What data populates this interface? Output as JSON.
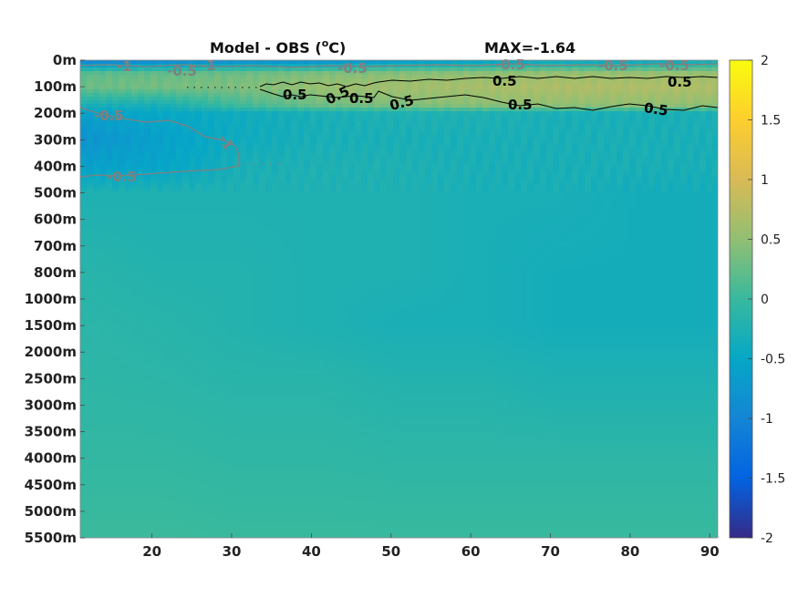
{
  "chart_data": {
    "type": "heatmap",
    "title": "Model - OBS (",
    "title_unit_sup": "o",
    "title_unit": "C)",
    "max_label": "MAX=-1.64",
    "x_ticks": [
      20,
      30,
      40,
      50,
      60,
      70,
      80,
      90
    ],
    "x_range": [
      11,
      91
    ],
    "y_tick_labels": [
      "0m",
      "100m",
      "200m",
      "300m",
      "400m",
      "500m",
      "600m",
      "700m",
      "800m",
      "1000m",
      "1500m",
      "2000m",
      "2500m",
      "3000m",
      "3500m",
      "4000m",
      "4500m",
      "5000m",
      "5500m"
    ],
    "colorbar": {
      "range": [
        -2,
        2
      ],
      "ticks": [
        2,
        1.5,
        1,
        0.5,
        0,
        -0.5,
        -1,
        -1.5,
        -2
      ],
      "tick_labels": [
        "2",
        "1.5",
        "1",
        "0.5",
        "0",
        "-0.5",
        "-1",
        "-1.5",
        "-2"
      ],
      "colormap": "parula"
    },
    "contour_labels": {
      "positive": [
        "0.5",
        "0.5",
        "0.5",
        "0.5",
        "0.5",
        "0.5",
        "0.5",
        "0.5"
      ],
      "negative": [
        "-1",
        "-0.5",
        "-1",
        "-0.5",
        "-0.5",
        "-0.5",
        "-0.5",
        "-0.5",
        "-1",
        "-0.5"
      ]
    },
    "field_rows": [
      {
        "level": 0,
        "values": [
          -1.1,
          -1.0,
          -0.9,
          -0.9,
          -0.7,
          -0.6,
          -0.5,
          -0.5,
          -0.4
        ]
      },
      {
        "level": 0.5,
        "values": [
          0.2,
          0.25,
          0.3,
          0.4,
          0.45,
          0.5,
          0.55,
          0.55,
          0.55
        ]
      },
      {
        "level": 1,
        "values": [
          0.3,
          0.35,
          0.4,
          0.55,
          0.6,
          0.65,
          0.7,
          0.7,
          0.7
        ]
      },
      {
        "level": 1.7,
        "values": [
          -0.3,
          -0.3,
          0.05,
          0.3,
          0.4,
          0.45,
          0.5,
          0.5,
          0.5
        ]
      },
      {
        "level": 2,
        "values": [
          -0.6,
          -0.5,
          -0.4,
          -0.3,
          -0.25,
          -0.25,
          -0.3,
          -0.3,
          -0.3
        ]
      },
      {
        "level": 3,
        "values": [
          -0.8,
          -0.6,
          -0.4,
          -0.3,
          -0.3,
          -0.3,
          -0.3,
          -0.3,
          -0.3
        ]
      },
      {
        "level": 4,
        "values": [
          -0.6,
          -0.55,
          -0.3,
          -0.25,
          -0.25,
          -0.3,
          -0.3,
          -0.3,
          -0.3
        ]
      },
      {
        "level": 5,
        "values": [
          -0.25,
          -0.25,
          -0.25,
          -0.25,
          -0.25,
          -0.3,
          -0.3,
          -0.35,
          -0.35
        ]
      },
      {
        "level": 8,
        "values": [
          -0.15,
          -0.2,
          -0.2,
          -0.25,
          -0.25,
          -0.3,
          -0.35,
          -0.35,
          -0.35
        ]
      },
      {
        "level": 10,
        "values": [
          -0.12,
          -0.15,
          -0.2,
          -0.25,
          -0.3,
          -0.3,
          -0.35,
          -0.35,
          -0.35
        ]
      },
      {
        "level": 12,
        "values": [
          -0.1,
          -0.12,
          -0.15,
          -0.15,
          -0.2,
          -0.2,
          -0.25,
          -0.25,
          -0.25
        ]
      },
      {
        "level": 15,
        "values": [
          -0.05,
          -0.05,
          -0.08,
          -0.08,
          -0.1,
          -0.1,
          -0.1,
          -0.1,
          -0.1
        ]
      },
      {
        "level": 18,
        "values": [
          0.02,
          0.02,
          0.0,
          0.0,
          0.0,
          0.0,
          0.0,
          0.0,
          0.0
        ]
      }
    ]
  }
}
